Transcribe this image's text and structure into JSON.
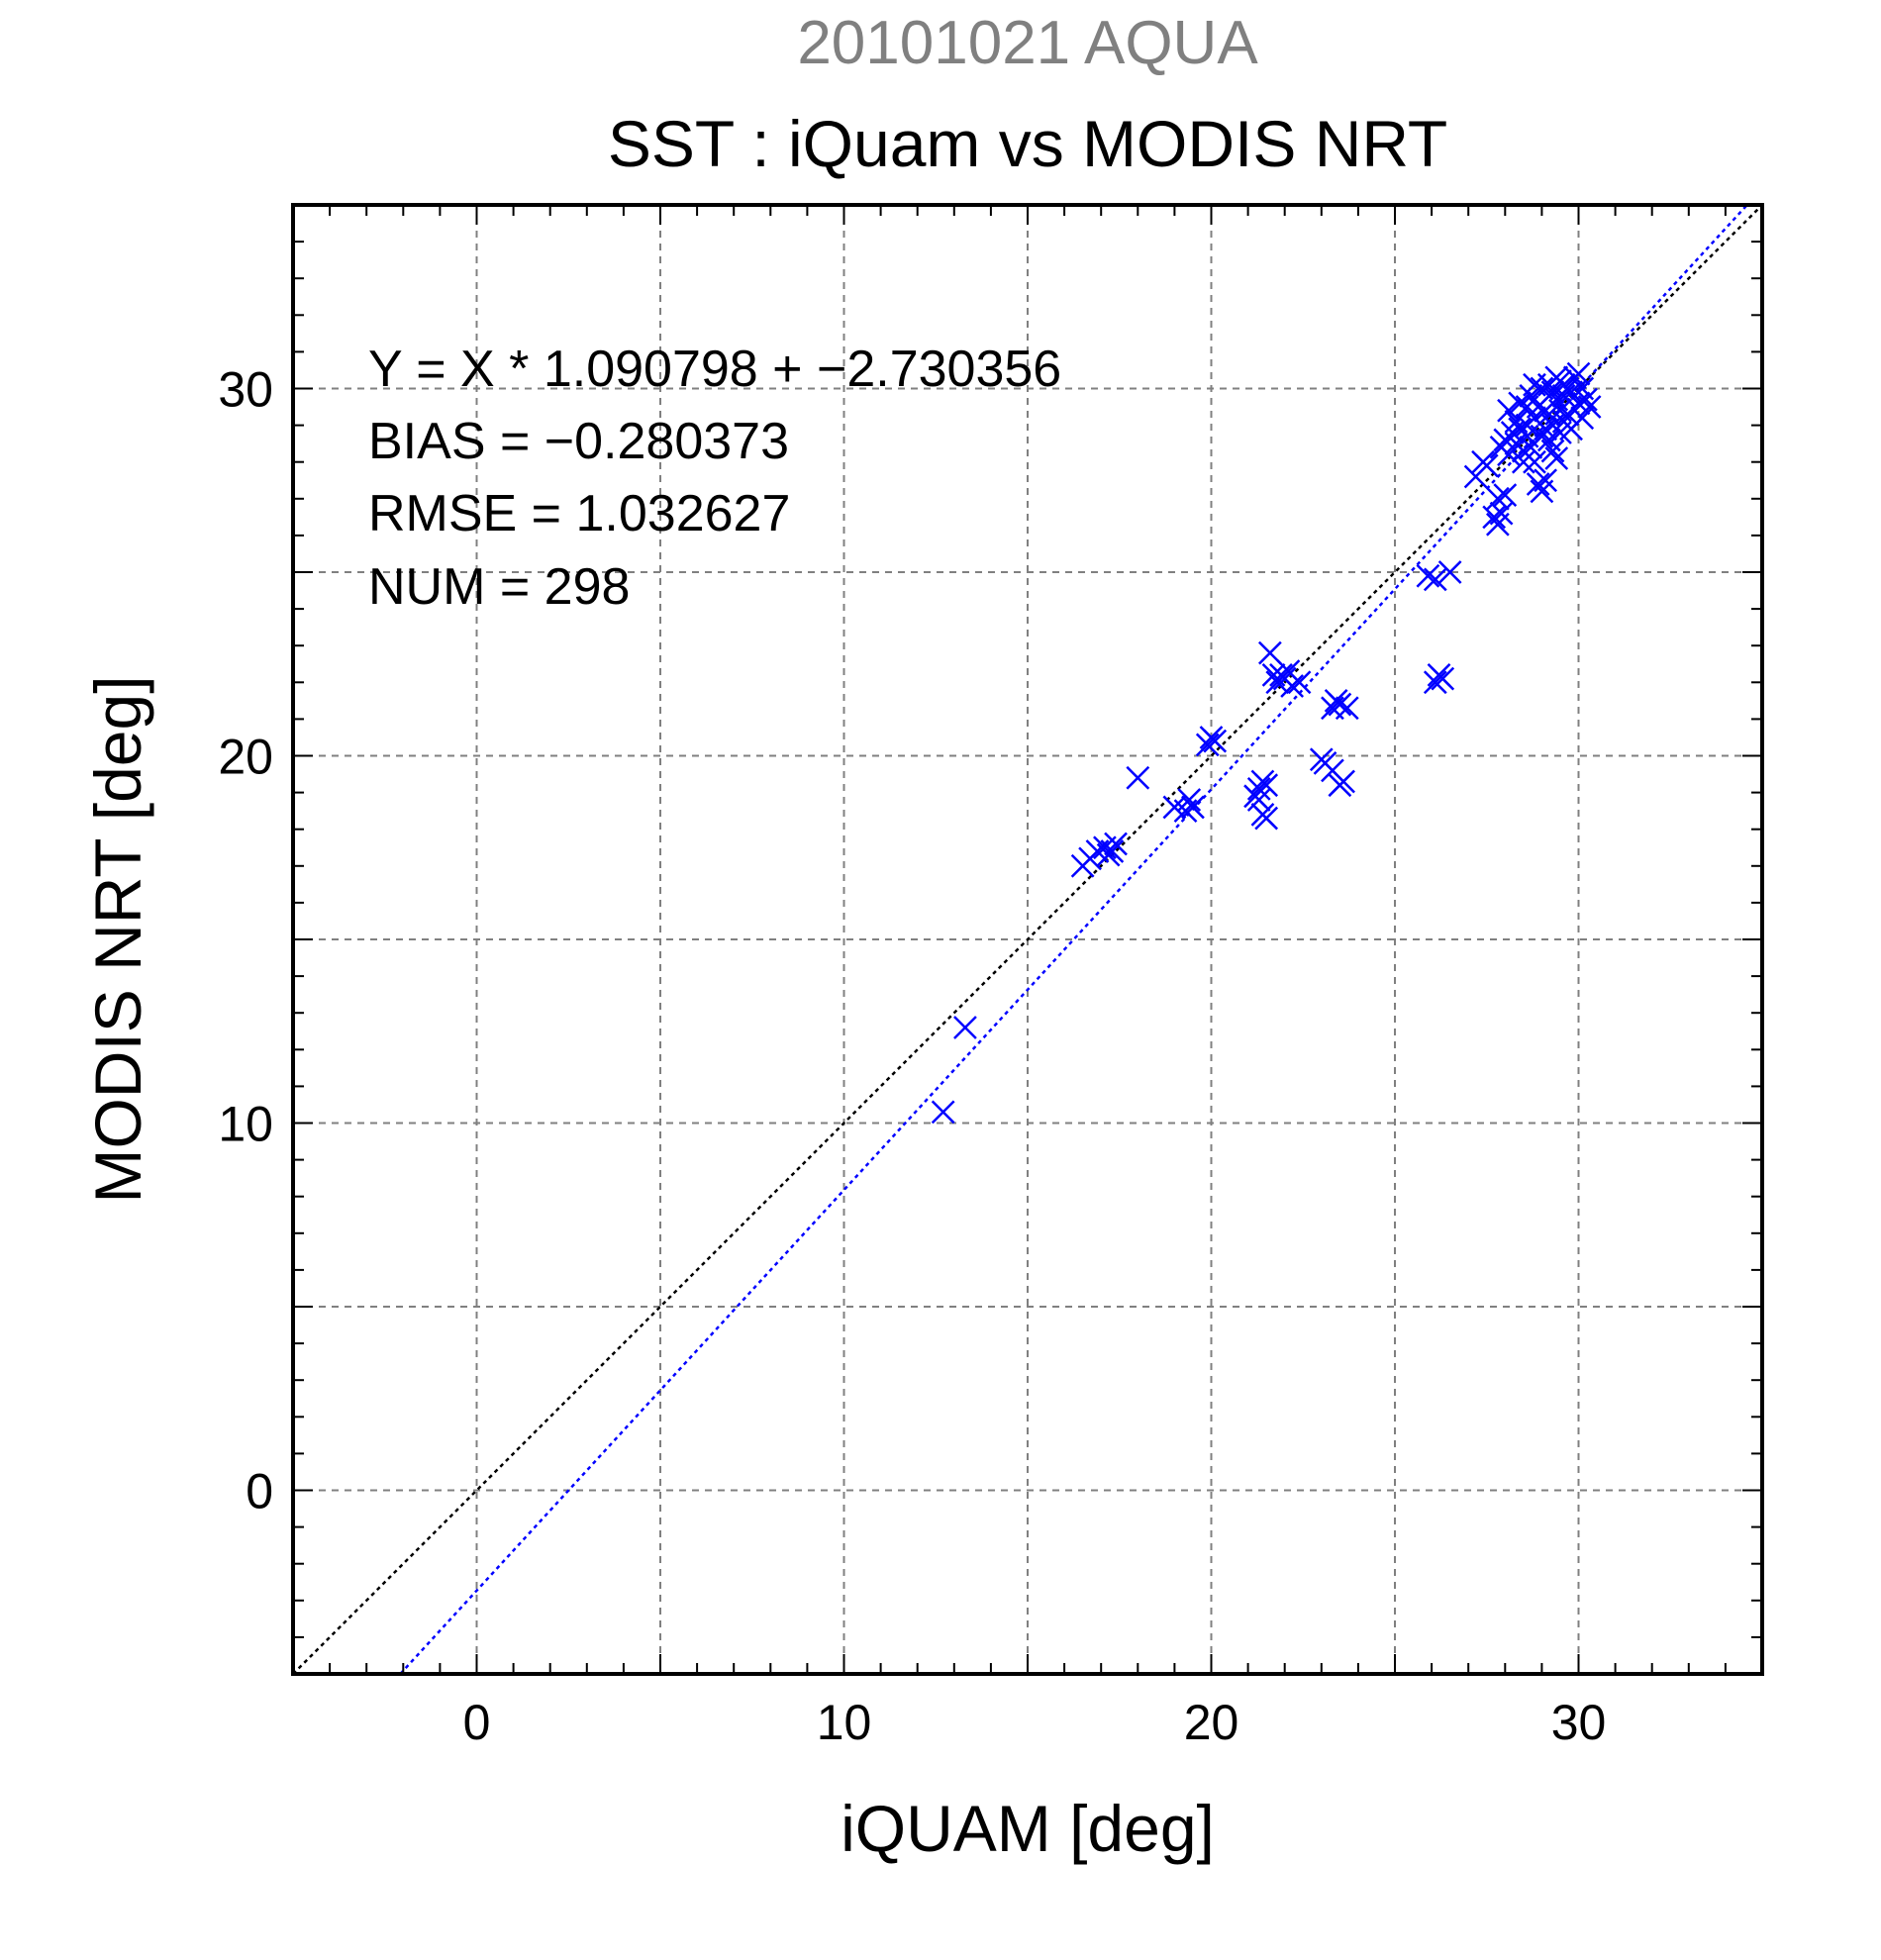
{
  "header": {
    "suptitle": "20101021 AQUA",
    "title": "SST : iQuam vs MODIS NRT"
  },
  "stats": [
    "Y = X * 1.090798 + −2.730356",
    "BIAS = −0.280373",
    "RMSE = 1.032627",
    "NUM = 298"
  ],
  "chart_data": {
    "type": "scatter",
    "title": "SST : iQuam vs MODIS NRT",
    "xlabel": "iQUAM [deg]",
    "ylabel": "MODIS NRT [deg]",
    "xlim": [
      -5,
      35
    ],
    "ylim": [
      -5,
      35
    ],
    "xticks": [
      0,
      10,
      20,
      30
    ],
    "xtick_labels": [
      "0",
      "10",
      "20",
      "30"
    ],
    "yticks": [
      0,
      10,
      20,
      30
    ],
    "ytick_labels": [
      "0",
      "10",
      "20",
      "30"
    ],
    "grid": true,
    "grid_step": 5,
    "marker": "x",
    "colors": {
      "points": "#0000ff",
      "fit_line": "#0000ff",
      "identity_line": "#000000",
      "grid": "#808080"
    },
    "fit": {
      "slope": 1.090798,
      "intercept": -2.730356
    },
    "identity_line": {
      "slope": 1,
      "intercept": 0
    },
    "points": [
      [
        12.7,
        10.3
      ],
      [
        13.3,
        12.6
      ],
      [
        16.5,
        17.0
      ],
      [
        16.7,
        17.2
      ],
      [
        16.9,
        17.4
      ],
      [
        17.1,
        17.5
      ],
      [
        17.3,
        17.4
      ],
      [
        17.4,
        17.6
      ],
      [
        17.2,
        17.3
      ],
      [
        18.0,
        19.4
      ],
      [
        19.0,
        18.6
      ],
      [
        19.3,
        18.5
      ],
      [
        19.5,
        18.6
      ],
      [
        19.4,
        18.8
      ],
      [
        19.9,
        20.3
      ],
      [
        20.0,
        20.5
      ],
      [
        20.1,
        20.4
      ],
      [
        21.2,
        18.9
      ],
      [
        21.3,
        19.1
      ],
      [
        21.4,
        19.3
      ],
      [
        21.5,
        19.2
      ],
      [
        21.3,
        18.8
      ],
      [
        21.4,
        18.4
      ],
      [
        21.5,
        18.3
      ],
      [
        21.6,
        22.8
      ],
      [
        21.7,
        22.2
      ],
      [
        21.8,
        22.0
      ],
      [
        22.0,
        22.1
      ],
      [
        22.1,
        22.3
      ],
      [
        22.2,
        21.9
      ],
      [
        22.4,
        22.0
      ],
      [
        21.9,
        22.2
      ],
      [
        23.0,
        19.9
      ],
      [
        23.1,
        19.8
      ],
      [
        23.3,
        19.6
      ],
      [
        23.5,
        19.2
      ],
      [
        23.6,
        19.3
      ],
      [
        23.3,
        21.3
      ],
      [
        23.5,
        21.4
      ],
      [
        23.7,
        21.3
      ],
      [
        23.4,
        21.5
      ],
      [
        25.9,
        24.9
      ],
      [
        26.1,
        24.8
      ],
      [
        26.5,
        25.0
      ],
      [
        26.1,
        22.0
      ],
      [
        26.2,
        22.2
      ],
      [
        26.3,
        22.1
      ],
      [
        27.2,
        27.6
      ],
      [
        27.4,
        28.0
      ],
      [
        27.5,
        27.9
      ],
      [
        27.7,
        26.5
      ],
      [
        27.8,
        26.3
      ],
      [
        27.9,
        26.6
      ],
      [
        27.8,
        27.0
      ],
      [
        28.0,
        27.1
      ],
      [
        27.9,
        28.4
      ],
      [
        28.0,
        28.6
      ],
      [
        28.1,
        28.2
      ],
      [
        28.2,
        28.8
      ],
      [
        28.3,
        29.1
      ],
      [
        28.1,
        29.4
      ],
      [
        28.4,
        28.9
      ],
      [
        28.5,
        28.3
      ],
      [
        28.6,
        29.5
      ],
      [
        28.7,
        29.8
      ],
      [
        28.5,
        28.0
      ],
      [
        28.6,
        28.7
      ],
      [
        28.8,
        29.2
      ],
      [
        28.4,
        29.6
      ],
      [
        28.9,
        27.4
      ],
      [
        29.0,
        27.2
      ],
      [
        29.1,
        27.5
      ],
      [
        28.8,
        28.0
      ],
      [
        29.0,
        30.0
      ],
      [
        29.1,
        29.4
      ],
      [
        29.2,
        30.1
      ],
      [
        29.3,
        29.0
      ],
      [
        29.4,
        29.7
      ],
      [
        29.5,
        30.2
      ],
      [
        29.6,
        29.8
      ],
      [
        29.2,
        28.6
      ],
      [
        29.3,
        28.3
      ],
      [
        29.5,
        28.8
      ],
      [
        29.7,
        29.3
      ],
      [
        29.8,
        29.9
      ],
      [
        29.9,
        30.3
      ],
      [
        30.0,
        29.6
      ],
      [
        30.1,
        30.0
      ],
      [
        30.2,
        29.7
      ],
      [
        30.3,
        29.5
      ],
      [
        30.0,
        30.4
      ],
      [
        29.8,
        28.9
      ],
      [
        29.6,
        29.1
      ],
      [
        29.4,
        28.1
      ],
      [
        28.3,
        28.5
      ],
      [
        28.6,
        29.0
      ],
      [
        28.9,
        29.5
      ],
      [
        29.1,
        28.9
      ],
      [
        29.3,
        29.9
      ],
      [
        29.5,
        29.4
      ],
      [
        29.7,
        30.0
      ],
      [
        28.7,
        28.4
      ],
      [
        29.0,
        28.7
      ],
      [
        29.2,
        29.3
      ],
      [
        29.4,
        30.3
      ],
      [
        28.8,
        30.1
      ],
      [
        29.6,
        30.1
      ],
      [
        30.1,
        29.2
      ]
    ]
  }
}
